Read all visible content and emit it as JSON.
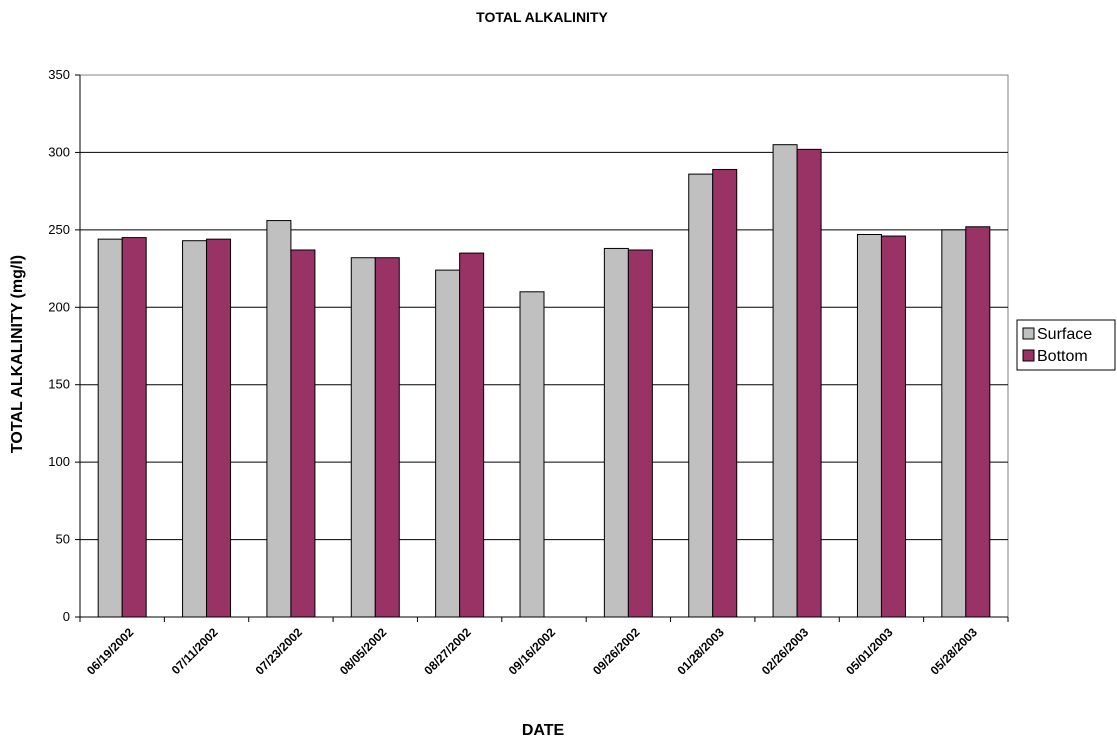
{
  "chart_data": {
    "type": "bar",
    "title": "TOTAL ALKALINITY",
    "xlabel": "DATE",
    "ylabel": "TOTAL ALKALINITY (mg/l)",
    "ylim": [
      0,
      350
    ],
    "yticks": [
      0,
      50,
      100,
      150,
      200,
      250,
      300,
      350
    ],
    "grid": true,
    "legend_position": "right",
    "categories": [
      "06/19/2002",
      "07/11/2002",
      "07/23/2002",
      "08/05/2002",
      "08/27/2002",
      "09/16/2002",
      "09/26/2002",
      "01/28/2003",
      "02/26/2003",
      "05/01/2003",
      "05/28/2003"
    ],
    "series": [
      {
        "name": "Surface",
        "color": "#c0c0c0",
        "values": [
          244,
          243,
          256,
          232,
          224,
          210,
          238,
          286,
          305,
          247,
          250
        ]
      },
      {
        "name": "Bottom",
        "color": "#993366",
        "values": [
          245,
          244,
          237,
          232,
          235,
          null,
          237,
          289,
          302,
          246,
          252
        ]
      }
    ]
  }
}
